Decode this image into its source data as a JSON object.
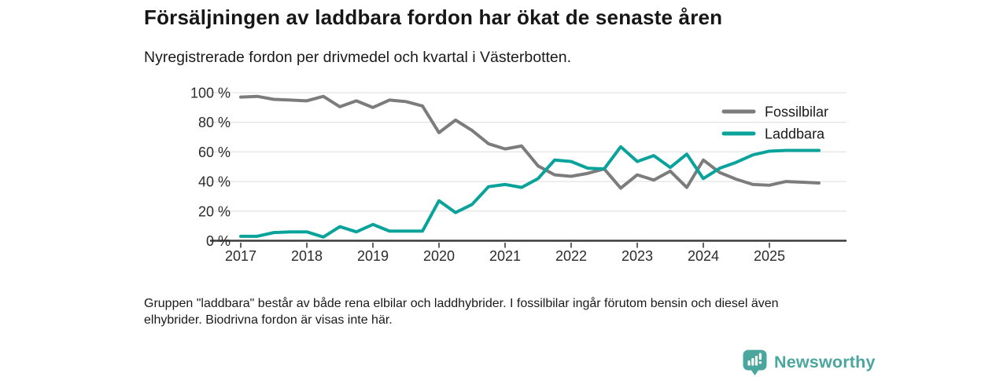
{
  "header": {
    "title": "Försäljningen av laddbara fordon har ökat de senaste åren",
    "subtitle": "Nyregistrerade fordon per drivmedel och kvartal i Västerbotten."
  },
  "chart_data": {
    "type": "line",
    "x_unit": "quarter",
    "x": [
      "2017 K1",
      "2017 K2",
      "2017 K3",
      "2017 K4",
      "2018 K1",
      "2018 K2",
      "2018 K3",
      "2018 K4",
      "2019 K1",
      "2019 K2",
      "2019 K3",
      "2019 K4",
      "2020 K1",
      "2020 K2",
      "2020 K3",
      "2020 K4",
      "2021 K1",
      "2021 K2",
      "2021 K3",
      "2021 K4",
      "2022 K1",
      "2022 K2",
      "2022 K3",
      "2022 K4",
      "2023 K1",
      "2023 K2",
      "2023 K3",
      "2023 K4",
      "2024 K1",
      "2024 K2",
      "2024 K3",
      "2024 K4",
      "2025 K1",
      "2025 K2",
      "2025 K3",
      "2025 K4"
    ],
    "series": [
      {
        "name": "Fossilbilar",
        "color": "#7c7c7c",
        "values": [
          97,
          97.5,
          95.5,
          95,
          94.5,
          97.5,
          90.5,
          94.5,
          90,
          95,
          94,
          91,
          73,
          81.5,
          74.5,
          65.5,
          62,
          64,
          50.5,
          44.5,
          43.5,
          45.5,
          48.5,
          35.5,
          44.5,
          41,
          47,
          36,
          54.5,
          46,
          41.5,
          38,
          37.5,
          40,
          39.5,
          39
        ]
      },
      {
        "name": "Laddbara",
        "color": "#0aa39b",
        "values": [
          3,
          3,
          5.5,
          6,
          6,
          2.5,
          9.5,
          6,
          11,
          6.5,
          6.5,
          6.5,
          27,
          19,
          24.5,
          36.5,
          38,
          36,
          42,
          54.5,
          53.5,
          49,
          48.5,
          63.5,
          53.5,
          57.5,
          49.5,
          58.5,
          42,
          49,
          53,
          58,
          60.5,
          61,
          61,
          61
        ]
      }
    ],
    "title": "Försäljningen av laddbara fordon har ökat de senaste åren",
    "xlabel": "",
    "ylabel": "",
    "ylim": [
      0,
      100
    ],
    "yticks": [
      0,
      20,
      40,
      60,
      80,
      100
    ],
    "ytick_suffix": " %",
    "xticks": [
      "2017",
      "2018",
      "2019",
      "2020",
      "2021",
      "2022",
      "2023",
      "2024",
      "2025"
    ],
    "grid": true,
    "legend_position": "top-right"
  },
  "footnote": {
    "lines": [
      "Gruppen \"laddbara\" består av både rena elbilar och laddhybrider. I fossilbilar ingår förutom bensin och diesel även",
      "elhybrider. Biodrivna fordon är visas inte här."
    ]
  },
  "branding": {
    "name": "Newsworthy",
    "color": "#4ba69d"
  }
}
